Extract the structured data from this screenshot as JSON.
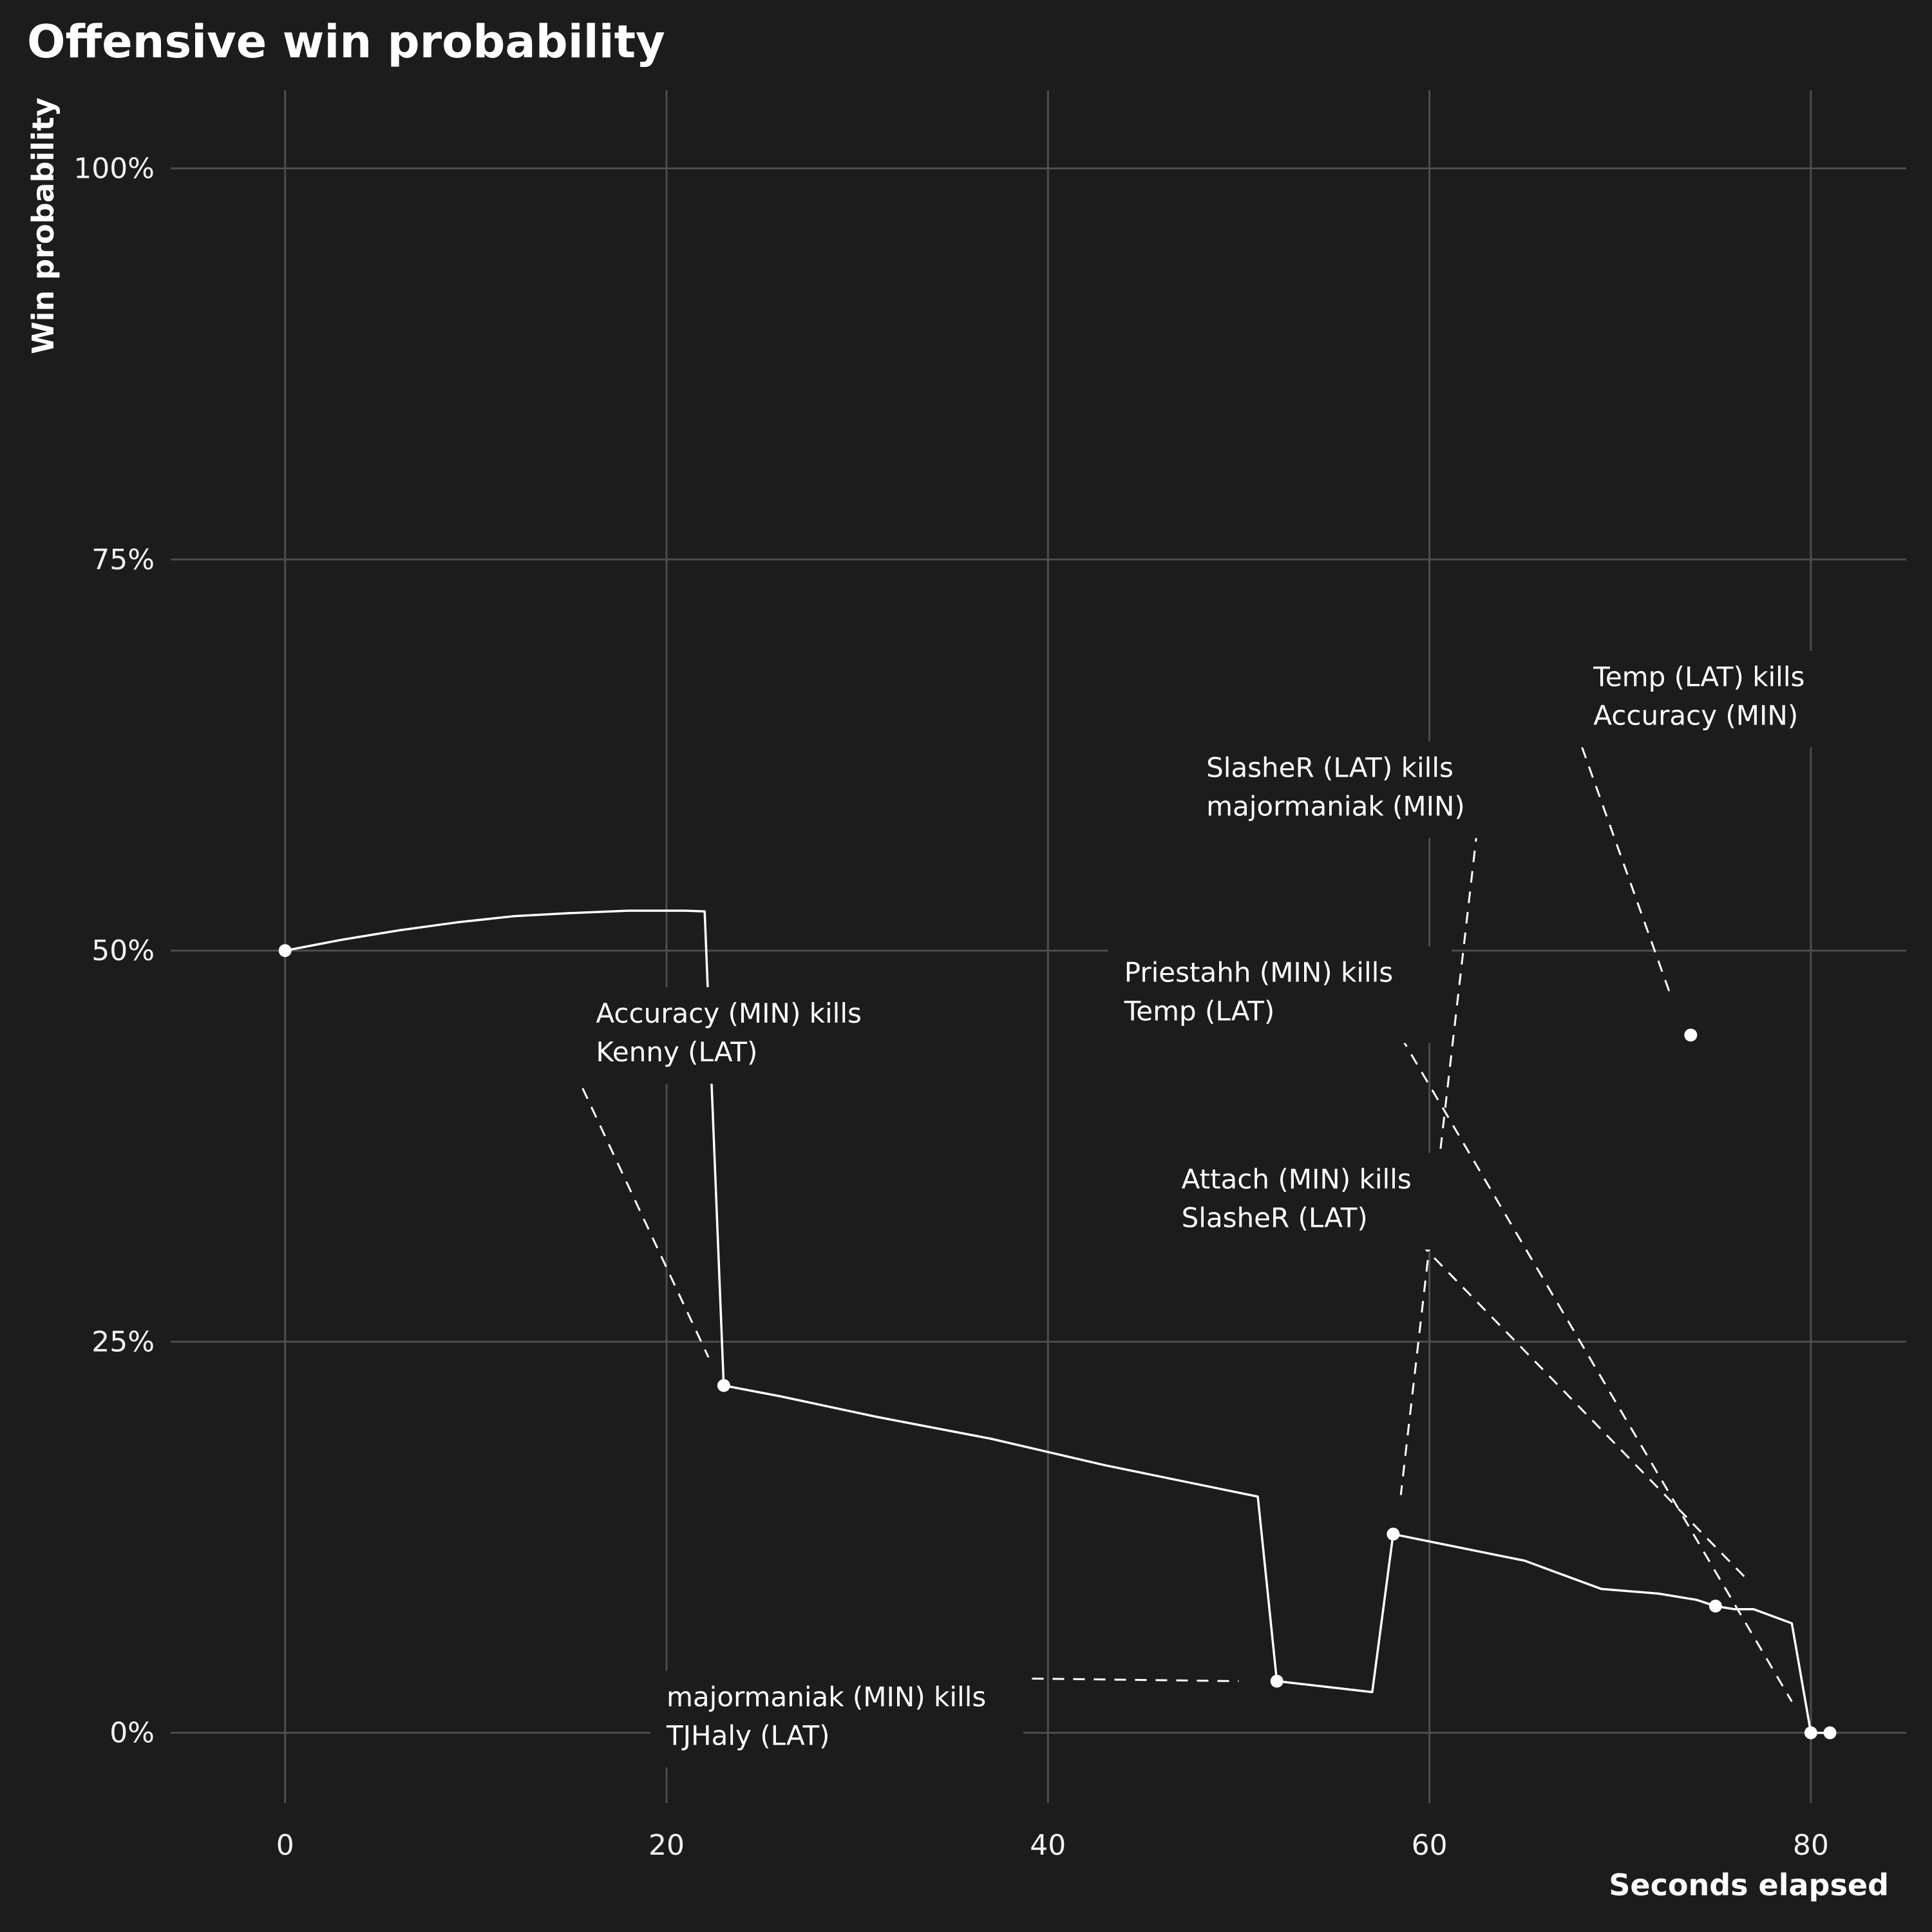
{
  "chart_data": {
    "type": "line",
    "title": "Offensive win probability",
    "xlabel": "Seconds elapsed",
    "ylabel": "Win probability",
    "xlim": [
      -6,
      85
    ],
    "ylim": [
      -0.045,
      1.05
    ],
    "x_ticks": [
      0,
      20,
      40,
      60,
      80
    ],
    "y_ticks": [
      0,
      0.25,
      0.5,
      0.75,
      1.0
    ],
    "y_tick_labels": [
      "0%",
      "25%",
      "50%",
      "75%",
      "100%"
    ],
    "grid": true,
    "series": [
      {
        "points": [
          {
            "x": 0,
            "y": 0.5
          },
          {
            "x": 3,
            "y": 0.507
          },
          {
            "x": 6,
            "y": 0.513
          },
          {
            "x": 9,
            "y": 0.518
          },
          {
            "x": 12,
            "y": 0.522
          },
          {
            "x": 15,
            "y": 0.524
          },
          {
            "x": 18,
            "y": 0.5255
          },
          {
            "x": 21,
            "y": 0.5255
          },
          {
            "x": 22,
            "y": 0.525
          },
          {
            "x": 23,
            "y": 0.222
          },
          {
            "x": 26,
            "y": 0.215
          },
          {
            "x": 31,
            "y": 0.202
          },
          {
            "x": 37,
            "y": 0.188
          },
          {
            "x": 43,
            "y": 0.171
          },
          {
            "x": 51,
            "y": 0.151
          },
          {
            "x": 52,
            "y": 0.033
          },
          {
            "x": 57,
            "y": 0.026
          },
          {
            "x": 58.1,
            "y": 0.127
          },
          {
            "x": 65,
            "y": 0.11
          },
          {
            "x": 69,
            "y": 0.092
          },
          {
            "x": 72,
            "y": 0.089
          },
          {
            "x": 74,
            "y": 0.085
          },
          {
            "x": 75,
            "y": 0.081
          },
          {
            "x": 76,
            "y": 0.079
          },
          {
            "x": 77,
            "y": 0.079
          },
          {
            "x": 79,
            "y": 0.07
          },
          {
            "x": 80,
            "y": 0.0
          },
          {
            "x": 81,
            "y": 0.0
          }
        ]
      }
    ],
    "events": [
      {
        "x": 0,
        "y": 0.5
      },
      {
        "x": 23,
        "y": 0.222
      },
      {
        "x": 52,
        "y": 0.033
      },
      {
        "x": 58.1,
        "y": 0.127
      },
      {
        "x": 73.7,
        "y": 0.446
      },
      {
        "x": 75,
        "y": 0.081
      },
      {
        "x": 80,
        "y": 0.0
      },
      {
        "x": 81,
        "y": 0.0
      }
    ],
    "annotations": [
      {
        "lines": [
          "Accuracy (MIN) kills",
          "Kenny (LAT)"
        ],
        "label_x": 16.3,
        "label_y": 0.454,
        "line_from": [
          15.6,
          0.412
        ],
        "line_to": [
          22.2,
          0.24
        ]
      },
      {
        "lines": [
          "majormaniak (MIN) kills",
          "TJHaly (LAT)"
        ],
        "label_x": 20,
        "label_y": 0.017,
        "line_from": [
          37,
          0.035
        ],
        "line_to": [
          50,
          0.033
        ]
      },
      {
        "lines": [
          "Priestahh (MIN) kills",
          "Temp (LAT)"
        ],
        "label_x": 44,
        "label_y": 0.48,
        "line_from": [
          58.5,
          0.445
        ],
        "line_to": [
          79,
          0.02
        ]
      },
      {
        "lines": [
          "SlasheR (LAT) kills",
          "majormaniak (MIN)"
        ],
        "label_x": 48.3,
        "label_y": 0.611,
        "line_from": [
          62.5,
          0.577
        ],
        "line_to": [
          58.5,
          0.152
        ]
      },
      {
        "lines": [
          "Attach (MIN) kills",
          "SlasheR (LAT)"
        ],
        "label_x": 47,
        "label_y": 0.348,
        "line_from": [
          59.5,
          0.313
        ],
        "line_to": [
          76.5,
          0.1
        ]
      },
      {
        "lines": [
          "Temp (LAT) kills",
          "Accuracy (MIN)"
        ],
        "label_x": 68.6,
        "label_y": 0.669,
        "line_from": [
          68,
          0.63
        ],
        "line_to": [
          72.6,
          0.473
        ]
      }
    ]
  },
  "style": {
    "background": "#1c1c1c",
    "grid_color": "#4d4d4d",
    "line_color": "#ffffff",
    "text_color": "#ffffff"
  }
}
